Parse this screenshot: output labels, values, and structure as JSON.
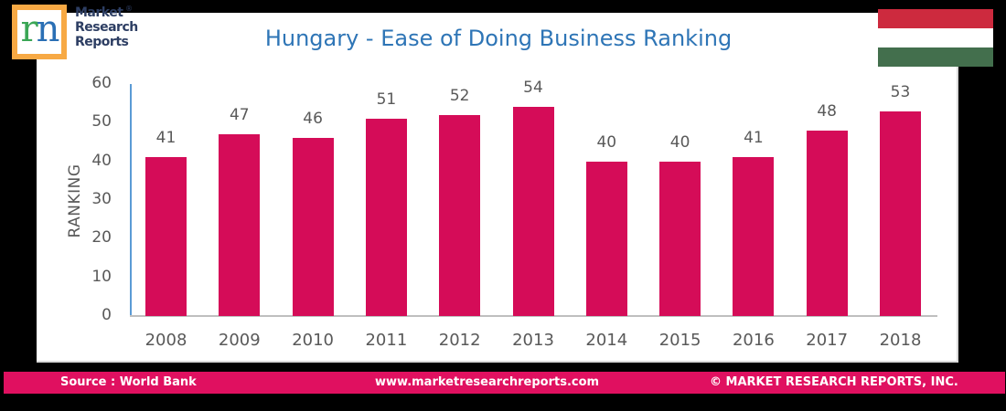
{
  "logo": {
    "letter_left": "r",
    "letter_right": "n",
    "line1": "Market",
    "line2": "Research",
    "line3": "Reports",
    "registered": "®",
    "border_color": "#f7a944"
  },
  "flag": {
    "country": "Hungary",
    "stripes": [
      "#cd2a3e",
      "#ffffff",
      "#436f4d"
    ]
  },
  "footer": {
    "source": "Source : World Bank",
    "website": "www.marketresearchreports.com",
    "copyright": "© MARKET RESEARCH REPORTS, INC.",
    "bg_color": "#e01060"
  },
  "chart_data": {
    "type": "bar",
    "title": "Hungary - Ease of Doing Business Ranking",
    "xlabel": "",
    "ylabel": "RANKING",
    "categories": [
      "2008",
      "2009",
      "2010",
      "2011",
      "2012",
      "2013",
      "2014",
      "2015",
      "2016",
      "2017",
      "2018"
    ],
    "values": [
      41,
      47,
      46,
      51,
      52,
      54,
      40,
      40,
      41,
      48,
      53
    ],
    "ylim": [
      0,
      60
    ],
    "yticks": [
      0,
      10,
      20,
      30,
      40,
      50,
      60
    ],
    "grid": false,
    "legend": null,
    "data_labels": true,
    "bar_color": "#d50c58",
    "title_color": "#2e75b6"
  }
}
